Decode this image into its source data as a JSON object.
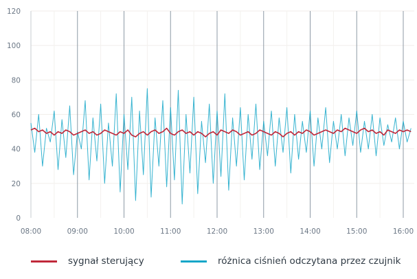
{
  "chart_data": {
    "type": "line",
    "title": "",
    "xlabel": "",
    "ylabel": "",
    "ylim": [
      0,
      120
    ],
    "yticks": [
      "0",
      "20",
      "40",
      "60",
      "80",
      "100",
      "120"
    ],
    "xticks": [
      "08:00",
      "09:00",
      "10:00",
      "11:00",
      "12:00",
      "13:00",
      "14:00",
      "15:00",
      "16:00"
    ],
    "x_start": "08:00",
    "x_step_minutes": 5,
    "grid": true,
    "legend_position": "bottom",
    "series": [
      {
        "name": "sygnał sterujący",
        "color": "#c0283a",
        "values": [
          51,
          52,
          50,
          51,
          49,
          50,
          48,
          50,
          49,
          51,
          50,
          48,
          49,
          50,
          51,
          49,
          50,
          48,
          49,
          51,
          50,
          49,
          48,
          50,
          49,
          51,
          48,
          47,
          49,
          50,
          48,
          50,
          51,
          49,
          50,
          52,
          49,
          48,
          50,
          51,
          49,
          50,
          48,
          50,
          49,
          47,
          49,
          50,
          48,
          51,
          50,
          49,
          51,
          50,
          48,
          49,
          50,
          48,
          49,
          51,
          50,
          49,
          48,
          50,
          49,
          47,
          49,
          50,
          48,
          50,
          49,
          51,
          50,
          48,
          49,
          50,
          51,
          50,
          49,
          51,
          50,
          52,
          51,
          50,
          49,
          51,
          52,
          50,
          51,
          49,
          50,
          48,
          51,
          50,
          49,
          51,
          50,
          51,
          50
        ]
      },
      {
        "name": "różnica ciśnień odczytana przez czujnik",
        "color": "#13a6c8",
        "values": [
          55,
          38,
          60,
          30,
          52,
          44,
          62,
          28,
          57,
          35,
          65,
          25,
          50,
          40,
          68,
          22,
          58,
          33,
          66,
          20,
          55,
          30,
          72,
          15,
          60,
          28,
          70,
          10,
          62,
          25,
          75,
          12,
          58,
          30,
          68,
          18,
          64,
          22,
          74,
          8,
          60,
          26,
          70,
          14,
          56,
          32,
          66,
          20,
          62,
          24,
          72,
          16,
          58,
          30,
          64,
          22,
          60,
          34,
          66,
          28,
          56,
          36,
          62,
          30,
          58,
          38,
          64,
          26,
          60,
          34,
          56,
          38,
          62,
          30,
          58,
          40,
          64,
          32,
          56,
          40,
          60,
          36,
          58,
          42,
          62,
          38,
          56,
          40,
          60,
          36,
          58,
          42,
          54,
          44,
          58,
          40,
          56,
          44,
          52
        ]
      }
    ]
  },
  "legend": {
    "items": [
      "sygnał sterujący",
      "różnica ciśnień odczytana przez czujnik"
    ]
  }
}
